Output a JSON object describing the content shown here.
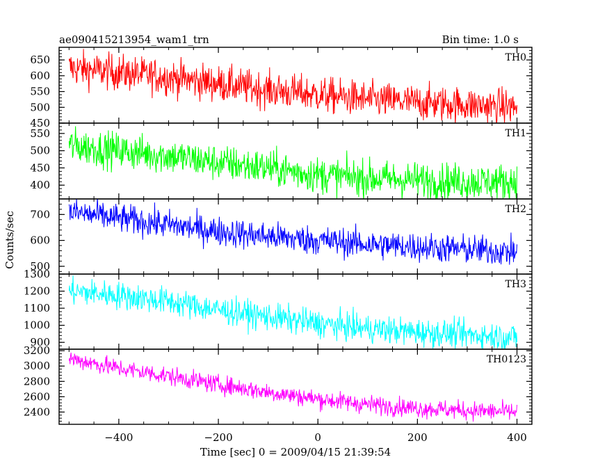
{
  "title_left": "ae090415213954_wam1_trn",
  "title_right": "Bin time: 1.0 s",
  "xlabel": "Time [sec] 0 = 2009/04/15 21:39:54",
  "ylabel": "Counts/sec",
  "colors": {
    "TH0": "#ff0000",
    "TH1": "#00ff00",
    "TH2": "#0000ff",
    "TH3": "#00ffff",
    "TH0123": "#ff00ff"
  },
  "chart_data": {
    "type": "line",
    "title": "ae090415213954_wam1_trn",
    "bin_time": "Bin time: 1.0 s",
    "xlabel": "Time [sec] 0 = 2009/04/15 21:39:54",
    "ylabel": "Counts/sec",
    "xlim": [
      -520,
      430
    ],
    "x_ticks": [
      "−400",
      "−200",
      "0",
      "200",
      "400"
    ],
    "x_tick_values": [
      -400,
      -200,
      0,
      200,
      400
    ],
    "x_data_range": [
      -500,
      400
    ],
    "panels": [
      {
        "name": "TH0",
        "color": "#ff0000",
        "ylim": [
          450,
          690
        ],
        "y_ticks": [
          450,
          500,
          550,
          600,
          650
        ],
        "trend_x": [
          -500,
          -400,
          -300,
          -200,
          -100,
          0,
          100,
          200,
          300,
          400
        ],
        "trend_y": [
          625,
          610,
          595,
          575,
          555,
          540,
          525,
          515,
          508,
          500
        ],
        "noise_sd": 28
      },
      {
        "name": "TH1",
        "color": "#00ff00",
        "ylim": [
          360,
          580
        ],
        "y_ticks": [
          400,
          450,
          500,
          550
        ],
        "trend_x": [
          -500,
          -400,
          -300,
          -200,
          -100,
          0,
          100,
          200,
          300,
          400
        ],
        "trend_y": [
          515,
          500,
          485,
          465,
          450,
          430,
          420,
          415,
          410,
          410
        ],
        "noise_sd": 26
      },
      {
        "name": "TH2",
        "color": "#0000ff",
        "ylim": [
          470,
          760
        ],
        "y_ticks": [
          500,
          600,
          700
        ],
        "trend_x": [
          -500,
          -400,
          -300,
          -200,
          -100,
          0,
          100,
          200,
          300,
          400
        ],
        "trend_y": [
          710,
          685,
          660,
          635,
          615,
          600,
          585,
          575,
          565,
          555
        ],
        "noise_sd": 28
      },
      {
        "name": "TH3",
        "color": "#00ffff",
        "ylim": [
          860,
          1300
        ],
        "y_ticks": [
          900,
          1000,
          1100,
          1200,
          1300
        ],
        "trend_x": [
          -500,
          -400,
          -300,
          -200,
          -100,
          0,
          100,
          200,
          300,
          400
        ],
        "trend_y": [
          1200,
          1175,
          1140,
          1090,
          1050,
          1010,
          980,
          960,
          945,
          930
        ],
        "noise_sd": 40
      },
      {
        "name": "TH0123",
        "color": "#ff00ff",
        "ylim": [
          2240,
          3220
        ],
        "y_ticks": [
          2400,
          2600,
          2800,
          3000,
          3200
        ],
        "trend_x": [
          -500,
          -400,
          -300,
          -200,
          -100,
          0,
          100,
          200,
          300,
          400
        ],
        "trend_y": [
          3100,
          2970,
          2870,
          2760,
          2660,
          2570,
          2500,
          2450,
          2420,
          2400
        ],
        "noise_sd": 60
      }
    ]
  }
}
